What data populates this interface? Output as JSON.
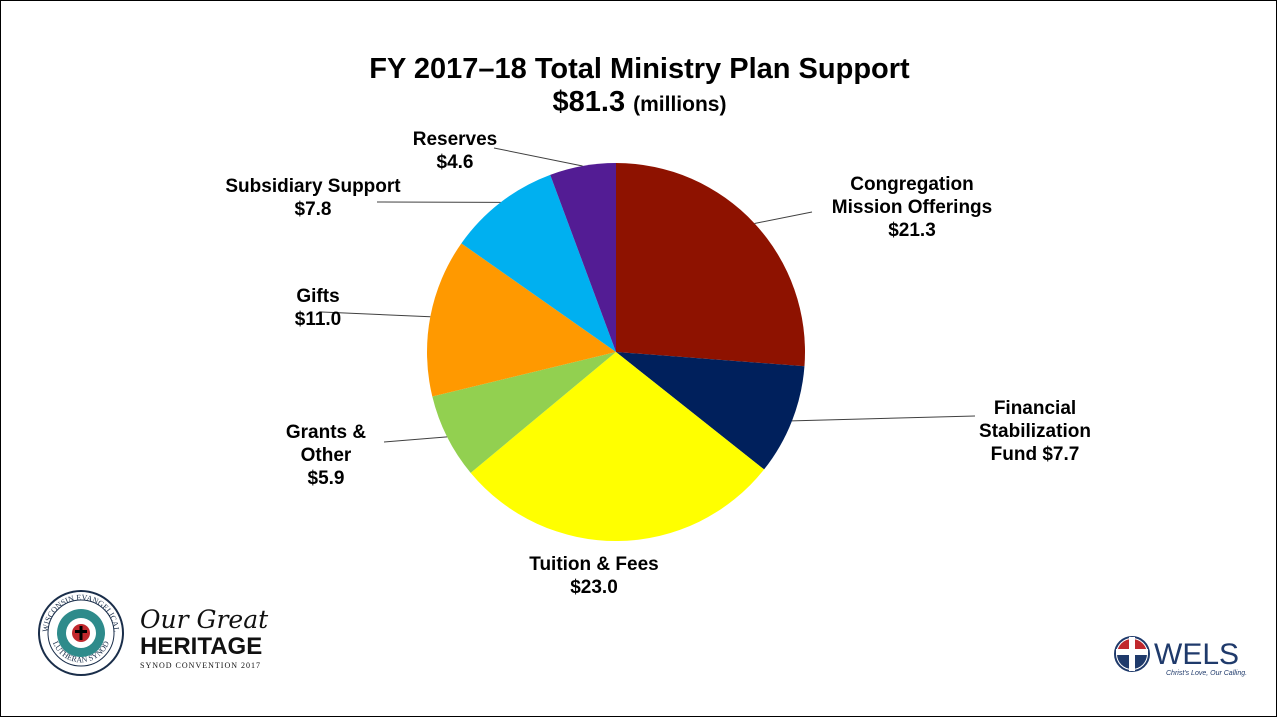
{
  "title": "FY 2017–18 Total Ministry Plan Support",
  "subtitle_value": "$81.3",
  "subtitle_unit": "(millions)",
  "chart_data": {
    "type": "pie",
    "title": "FY 2017–18 Total Ministry Plan Support",
    "subtitle": "$81.3 (millions)",
    "total": 81.3,
    "slices": [
      {
        "label_lines": [
          "Congregation",
          "Mission Offerings",
          "$21.3"
        ],
        "value": 21.3,
        "color": "#8E1200"
      },
      {
        "label_lines": [
          "Financial",
          "Stabilization",
          "Fund $7.7"
        ],
        "value": 7.7,
        "color": "#00205C"
      },
      {
        "label_lines": [
          "Tuition & Fees",
          "$23.0"
        ],
        "value": 23.0,
        "color": "#FFFF00"
      },
      {
        "label_lines": [
          "Grants &",
          "Other",
          "$5.9"
        ],
        "value": 5.9,
        "color": "#92D050"
      },
      {
        "label_lines": [
          "Gifts",
          "$11.0"
        ],
        "value": 11.0,
        "color": "#FF9900"
      },
      {
        "label_lines": [
          "Subsidiary Support",
          "$7.8"
        ],
        "value": 7.8,
        "color": "#00B0F0"
      },
      {
        "label_lines": [
          "Reserves",
          "$4.6"
        ],
        "value": 4.6,
        "color": "#531C94"
      }
    ]
  },
  "logos": {
    "left_seal_text_top": "WISCONSIN EVANGELICAL",
    "left_seal_text_bottom": "LUTHERAN SYNOD",
    "left_script": "Our Great",
    "left_heritage": "HERITAGE",
    "left_convention": "SYNOD CONVENTION 2017",
    "right_name": "WELS",
    "right_tagline": "Christ's Love, Our Calling."
  }
}
